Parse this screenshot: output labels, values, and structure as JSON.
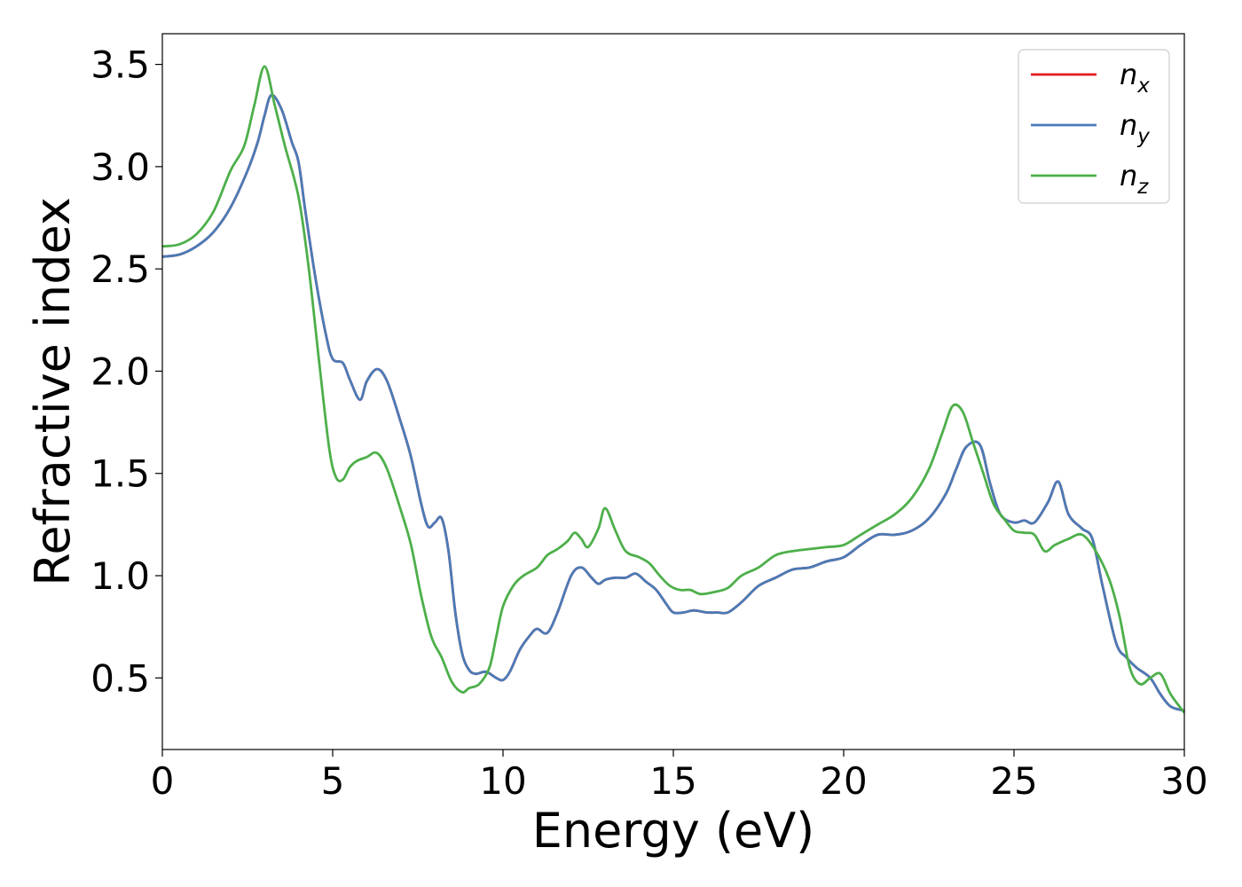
{
  "chart_data": {
    "type": "line",
    "xlabel": "Energy (eV)",
    "ylabel": "Refractive index",
    "xlim": [
      0,
      30
    ],
    "ylim": [
      0.15,
      3.65
    ],
    "xticks": [
      0,
      5,
      10,
      15,
      20,
      25,
      30
    ],
    "xtick_labels": [
      "0",
      "5",
      "10",
      "15",
      "20",
      "25",
      "30"
    ],
    "yticks": [
      0.5,
      1.0,
      1.5,
      2.0,
      2.5,
      3.0,
      3.5
    ],
    "ytick_labels": [
      "0.5",
      "1.0",
      "1.5",
      "2.0",
      "2.5",
      "3.0",
      "3.5"
    ],
    "grid": false,
    "legend_position": "top-right",
    "series": [
      {
        "name": "n_x",
        "label_base": "n",
        "label_sub": "x",
        "color": "#e41a1c",
        "x": [
          0,
          0.5,
          1,
          1.5,
          2,
          2.5,
          2.8,
          3.0,
          3.2,
          3.5,
          3.8,
          4.0,
          4.2,
          4.5,
          4.8,
          5.0,
          5.3,
          5.5,
          5.8,
          6.0,
          6.3,
          6.6,
          7.0,
          7.3,
          7.6,
          7.8,
          8.0,
          8.2,
          8.4,
          8.6,
          8.8,
          9.0,
          9.2,
          9.5,
          9.8,
          10.0,
          10.2,
          10.5,
          10.8,
          11.0,
          11.3,
          11.6,
          12.0,
          12.3,
          12.6,
          12.8,
          13.0,
          13.3,
          13.6,
          13.9,
          14.2,
          14.5,
          14.8,
          15.0,
          15.3,
          15.6,
          16.0,
          16.3,
          16.6,
          17.0,
          17.5,
          18.0,
          18.5,
          19.0,
          19.5,
          20.0,
          20.5,
          21.0,
          21.5,
          22.0,
          22.5,
          23.0,
          23.3,
          23.6,
          24.0,
          24.3,
          24.6,
          25.0,
          25.3,
          25.6,
          26.0,
          26.3,
          26.6,
          27.0,
          27.3,
          27.6,
          28.0,
          28.3,
          28.6,
          29.0,
          29.3,
          29.6,
          30.0
        ],
        "y": [
          2.56,
          2.57,
          2.61,
          2.68,
          2.8,
          2.98,
          3.12,
          3.25,
          3.35,
          3.28,
          3.12,
          3.02,
          2.78,
          2.45,
          2.18,
          2.06,
          2.04,
          1.96,
          1.86,
          1.95,
          2.01,
          1.95,
          1.75,
          1.58,
          1.35,
          1.24,
          1.26,
          1.28,
          1.12,
          0.82,
          0.62,
          0.54,
          0.52,
          0.53,
          0.5,
          0.49,
          0.53,
          0.64,
          0.71,
          0.74,
          0.72,
          0.82,
          1.0,
          1.04,
          0.99,
          0.96,
          0.98,
          0.99,
          0.99,
          1.01,
          0.97,
          0.93,
          0.86,
          0.82,
          0.82,
          0.83,
          0.82,
          0.82,
          0.82,
          0.87,
          0.95,
          0.99,
          1.03,
          1.04,
          1.07,
          1.09,
          1.15,
          1.2,
          1.2,
          1.22,
          1.28,
          1.4,
          1.52,
          1.63,
          1.64,
          1.45,
          1.3,
          1.26,
          1.27,
          1.26,
          1.36,
          1.46,
          1.3,
          1.23,
          1.18,
          0.95,
          0.67,
          0.6,
          0.55,
          0.5,
          0.42,
          0.36,
          0.34
        ]
      },
      {
        "name": "n_y",
        "label_base": "n",
        "label_sub": "y",
        "color": "#4a7bb7",
        "x": [
          0,
          0.5,
          1,
          1.5,
          2,
          2.5,
          2.8,
          3.0,
          3.2,
          3.5,
          3.8,
          4.0,
          4.2,
          4.5,
          4.8,
          5.0,
          5.3,
          5.5,
          5.8,
          6.0,
          6.3,
          6.6,
          7.0,
          7.3,
          7.6,
          7.8,
          8.0,
          8.2,
          8.4,
          8.6,
          8.8,
          9.0,
          9.2,
          9.5,
          9.8,
          10.0,
          10.2,
          10.5,
          10.8,
          11.0,
          11.3,
          11.6,
          12.0,
          12.3,
          12.6,
          12.8,
          13.0,
          13.3,
          13.6,
          13.9,
          14.2,
          14.5,
          14.8,
          15.0,
          15.3,
          15.6,
          16.0,
          16.3,
          16.6,
          17.0,
          17.5,
          18.0,
          18.5,
          19.0,
          19.5,
          20.0,
          20.5,
          21.0,
          21.5,
          22.0,
          22.5,
          23.0,
          23.3,
          23.6,
          24.0,
          24.3,
          24.6,
          25.0,
          25.3,
          25.6,
          26.0,
          26.3,
          26.6,
          27.0,
          27.3,
          27.6,
          28.0,
          28.3,
          28.6,
          29.0,
          29.3,
          29.6,
          30.0
        ],
        "y": [
          2.56,
          2.57,
          2.61,
          2.68,
          2.8,
          2.98,
          3.12,
          3.25,
          3.35,
          3.28,
          3.12,
          3.02,
          2.78,
          2.45,
          2.18,
          2.06,
          2.04,
          1.96,
          1.86,
          1.95,
          2.01,
          1.95,
          1.75,
          1.58,
          1.35,
          1.24,
          1.26,
          1.28,
          1.12,
          0.82,
          0.62,
          0.54,
          0.52,
          0.53,
          0.5,
          0.49,
          0.53,
          0.64,
          0.71,
          0.74,
          0.72,
          0.82,
          1.0,
          1.04,
          0.99,
          0.96,
          0.98,
          0.99,
          0.99,
          1.01,
          0.97,
          0.93,
          0.86,
          0.82,
          0.82,
          0.83,
          0.82,
          0.82,
          0.82,
          0.87,
          0.95,
          0.99,
          1.03,
          1.04,
          1.07,
          1.09,
          1.15,
          1.2,
          1.2,
          1.22,
          1.28,
          1.4,
          1.52,
          1.63,
          1.64,
          1.45,
          1.3,
          1.26,
          1.27,
          1.26,
          1.36,
          1.46,
          1.3,
          1.23,
          1.18,
          0.95,
          0.67,
          0.6,
          0.55,
          0.5,
          0.42,
          0.36,
          0.34
        ]
      },
      {
        "name": "n_z",
        "label_base": "n",
        "label_sub": "z",
        "color": "#4daf4a",
        "x": [
          0,
          0.5,
          1,
          1.5,
          2,
          2.4,
          2.7,
          3.0,
          3.3,
          3.6,
          4.0,
          4.3,
          4.6,
          4.9,
          5.1,
          5.3,
          5.5,
          5.7,
          6.0,
          6.3,
          6.6,
          7.0,
          7.3,
          7.6,
          7.9,
          8.2,
          8.5,
          8.8,
          9.0,
          9.3,
          9.6,
          9.8,
          10.0,
          10.3,
          10.6,
          11.0,
          11.3,
          11.6,
          11.9,
          12.1,
          12.3,
          12.5,
          12.8,
          13.0,
          13.3,
          13.6,
          14.0,
          14.3,
          14.6,
          14.9,
          15.2,
          15.5,
          15.8,
          16.2,
          16.6,
          17.0,
          17.5,
          18.0,
          18.5,
          19.0,
          19.5,
          20.0,
          20.5,
          21.0,
          21.5,
          22.0,
          22.5,
          22.9,
          23.2,
          23.5,
          23.8,
          24.1,
          24.4,
          24.7,
          25.0,
          25.3,
          25.6,
          25.9,
          26.2,
          26.6,
          27.0,
          27.4,
          27.8,
          28.1,
          28.4,
          28.7,
          29.0,
          29.3,
          29.6,
          30.0
        ],
        "y": [
          2.61,
          2.62,
          2.67,
          2.78,
          2.98,
          3.1,
          3.3,
          3.49,
          3.3,
          3.1,
          2.85,
          2.5,
          2.05,
          1.62,
          1.48,
          1.47,
          1.53,
          1.56,
          1.58,
          1.6,
          1.52,
          1.32,
          1.15,
          0.9,
          0.7,
          0.6,
          0.48,
          0.43,
          0.45,
          0.47,
          0.55,
          0.7,
          0.85,
          0.95,
          1.0,
          1.04,
          1.1,
          1.13,
          1.17,
          1.21,
          1.18,
          1.14,
          1.23,
          1.33,
          1.22,
          1.12,
          1.09,
          1.06,
          1.0,
          0.95,
          0.93,
          0.93,
          0.91,
          0.92,
          0.94,
          1.0,
          1.04,
          1.1,
          1.12,
          1.13,
          1.14,
          1.15,
          1.2,
          1.25,
          1.3,
          1.38,
          1.52,
          1.7,
          1.83,
          1.8,
          1.65,
          1.5,
          1.35,
          1.28,
          1.22,
          1.21,
          1.2,
          1.12,
          1.15,
          1.18,
          1.2,
          1.12,
          0.98,
          0.8,
          0.55,
          0.47,
          0.5,
          0.52,
          0.42,
          0.33
        ]
      }
    ]
  }
}
